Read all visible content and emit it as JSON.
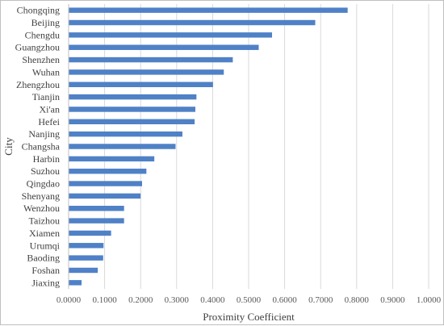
{
  "chart_data": {
    "type": "bar",
    "orientation": "horizontal",
    "title": "",
    "xlabel": "Proximity Coefficient",
    "ylabel": "City",
    "xlim": [
      0,
      1
    ],
    "grid": "vertical",
    "bar_color": "#4f81c7",
    "categories": [
      "Chongqing",
      "Beijing",
      "Chengdu",
      "Guangzhou",
      "Shenzhen",
      "Wuhan",
      "Zhengzhou",
      "Tianjin",
      "Xi'an",
      "Hefei",
      "Nanjing",
      "Changsha",
      "Harbin",
      "Suzhou",
      "Qingdao",
      "Shenyang",
      "Wenzhou",
      "Taizhou",
      "Xiamen",
      "Urumqi",
      "Baoding",
      "Foshan",
      "Jiaxing"
    ],
    "values": [
      0.775,
      0.685,
      0.565,
      0.528,
      0.456,
      0.431,
      0.401,
      0.355,
      0.352,
      0.35,
      0.316,
      0.297,
      0.238,
      0.216,
      0.204,
      0.2,
      0.154,
      0.154,
      0.118,
      0.097,
      0.096,
      0.081,
      0.036
    ],
    "xticks": [
      "0.0000",
      "0.1000",
      "0.2000",
      "0.3000",
      "0.4000",
      "0.5000",
      "0.6000",
      "0.7000",
      "0.8000",
      "0.9000",
      "1.0000"
    ],
    "legend": "none"
  }
}
